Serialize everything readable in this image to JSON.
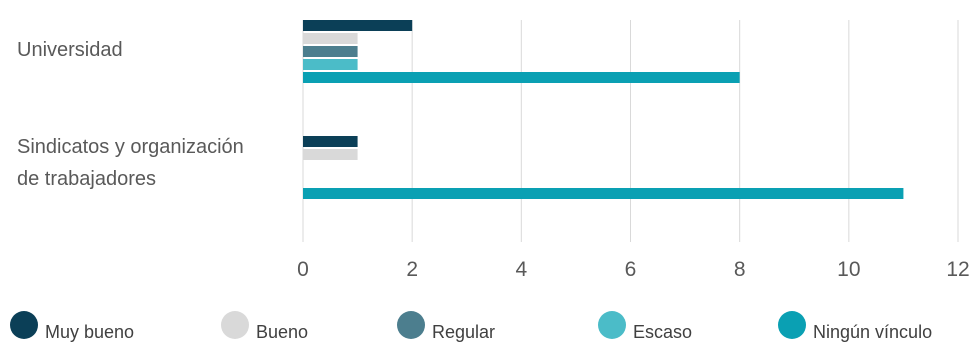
{
  "chart_data": {
    "type": "bar",
    "orientation": "horizontal",
    "categories": [
      [
        "Universidad"
      ],
      [
        "Sindicatos y organización",
        "de trabajadores"
      ]
    ],
    "series": [
      {
        "name": "Muy bueno",
        "color": "#0b3f57",
        "values": [
          2,
          1
        ]
      },
      {
        "name": "Bueno",
        "color": "#d9d9d9",
        "values": [
          1,
          1
        ]
      },
      {
        "name": "Regular",
        "color": "#4c7e8e",
        "values": [
          1,
          0
        ]
      },
      {
        "name": "Escaso",
        "color": "#4bbcc8",
        "values": [
          1,
          0
        ]
      },
      {
        "name": "Ningún vínculo",
        "color": "#0aa0b3",
        "values": [
          8,
          11
        ]
      }
    ],
    "xlim": [
      0,
      12
    ],
    "xticks": [
      "0",
      "2",
      "4",
      "6",
      "8",
      "10",
      "12"
    ],
    "grid": true,
    "legend_position": "bottom"
  }
}
